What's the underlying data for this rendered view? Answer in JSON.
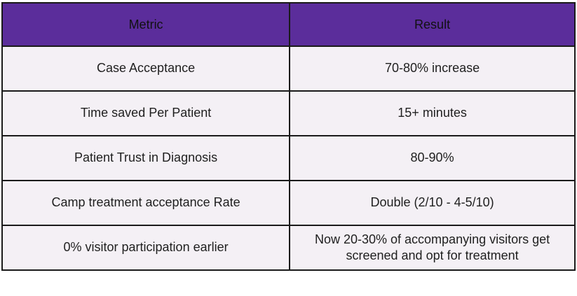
{
  "chart_data": {
    "type": "table",
    "columns": [
      "Metric",
      "Result"
    ],
    "rows": [
      {
        "metric": "Case Acceptance",
        "result": "70-80% increase"
      },
      {
        "metric": "Time saved Per Patient",
        "result": "15+ minutes"
      },
      {
        "metric": "Patient Trust in Diagnosis",
        "result": "80-90%"
      },
      {
        "metric": "Camp treatment acceptance Rate",
        "result": "Double (2/10 - 4-5/10)"
      },
      {
        "metric": "0% visitor participation earlier",
        "result": "Now 20-30% of accompanying visitors get screened and opt for treatment"
      }
    ]
  },
  "colors": {
    "header-bg": "#5B2D9B",
    "header-text": "#111111",
    "row-bg": "#F4F0F5",
    "body-text": "#1F1F1F",
    "border": "#1A1A1A",
    "page-bg": "#FFFFFF"
  }
}
